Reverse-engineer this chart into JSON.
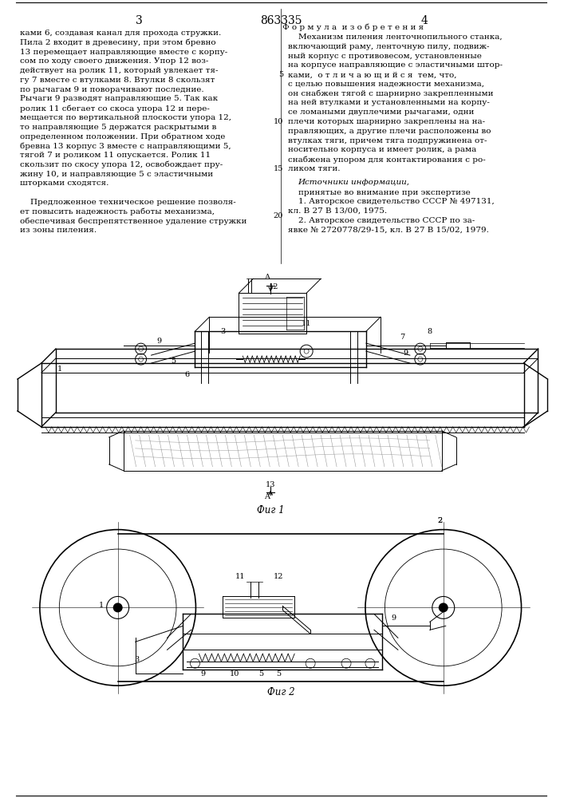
{
  "page_width": 7.07,
  "page_height": 10.0,
  "bg_color": "#ffffff",
  "page_number_left": "3",
  "page_number_center": "863335",
  "page_number_right": "4",
  "fig1_label": "Фиг 1",
  "fig2_label": "Фиг 2"
}
